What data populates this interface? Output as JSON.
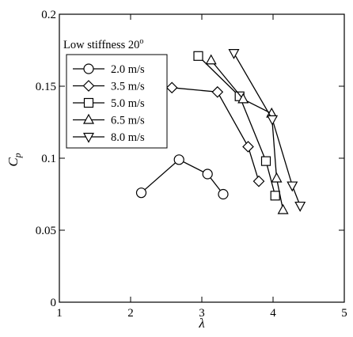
{
  "chart_data": {
    "type": "line",
    "title": "",
    "xlabel": "λ",
    "ylabel": "C",
    "ylabel_subscript": "p",
    "xlim": [
      1,
      5
    ],
    "ylim": [
      0,
      0.2
    ],
    "xticks": [
      "1",
      "2",
      "3",
      "4",
      "5"
    ],
    "yticks": [
      "0",
      "0.05",
      "0.1",
      "0.15",
      "0.2"
    ],
    "grid": false,
    "legend": {
      "title": "Low stiffness 20",
      "title_superscript": "o",
      "placement": "top-left"
    },
    "series": [
      {
        "name": "2.0 m/s",
        "marker": "circle",
        "x": [
          2.15,
          2.68,
          3.08,
          3.3
        ],
        "y": [
          0.076,
          0.099,
          0.089,
          0.075
        ]
      },
      {
        "name": "3.5 m/s",
        "marker": "diamond",
        "x": [
          2.58,
          3.22,
          3.65,
          3.8
        ],
        "y": [
          0.149,
          0.146,
          0.108,
          0.084
        ]
      },
      {
        "name": "5.0 m/s",
        "marker": "square",
        "x": [
          2.95,
          3.53,
          3.9,
          4.03
        ],
        "y": [
          0.171,
          0.143,
          0.098,
          0.074
        ]
      },
      {
        "name": "6.5 m/s",
        "marker": "triangle-up",
        "x": [
          3.13,
          3.58,
          3.98,
          4.05,
          4.14
        ],
        "y": [
          0.168,
          0.141,
          0.131,
          0.086,
          0.064
        ]
      },
      {
        "name": "8.0 m/s",
        "marker": "triangle-down",
        "x": [
          3.45,
          3.99,
          4.27,
          4.38
        ],
        "y": [
          0.173,
          0.127,
          0.081,
          0.067
        ]
      }
    ]
  }
}
